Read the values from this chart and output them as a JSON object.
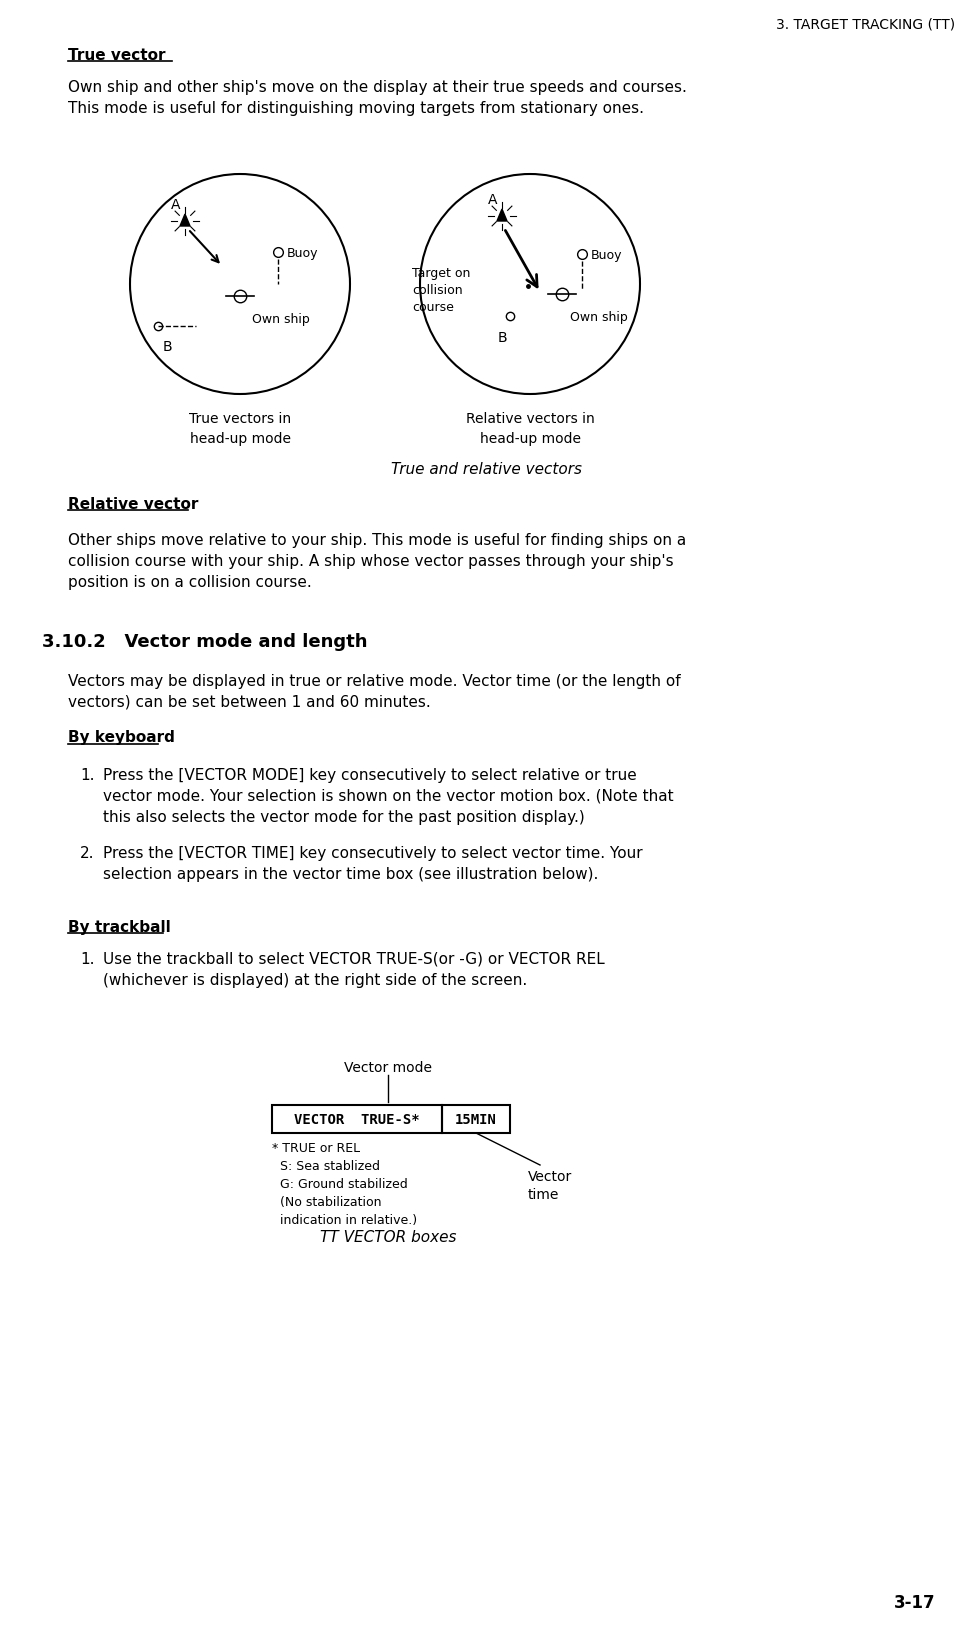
{
  "page_header": "3. TARGET TRACKING (TT)",
  "page_number": "3-17",
  "bg_color": "#ffffff",
  "true_vector_heading": "True vector",
  "true_vector_body": "Own ship and other ship's move on the display at their true speeds and courses.\nThis mode is useful for distinguishing moving targets from stationary ones.",
  "caption_true": "True vectors in\nhead-up mode",
  "caption_relative": "Relative vectors in\nhead-up mode",
  "fig_caption": "True and relative vectors",
  "relative_vector_heading": "Relative vector",
  "relative_vector_body": "Other ships move relative to your ship. This mode is useful for finding ships on a\ncollision course with your ship. A ship whose vector passes through your ship's\nposition is on a collision course.",
  "section_heading": "3.10.2   Vector mode and length",
  "section_body": "Vectors may be displayed in true or relative mode. Vector time (or the length of\nvectors) can be set between 1 and 60 minutes.",
  "keyboard_heading": "By keyboard",
  "keyboard_items": [
    "Press the [VECTOR MODE] key consecutively to select relative or true\nvector mode. Your selection is shown on the vector motion box. (Note that\nthis also selects the vector mode for the past position display.)",
    "Press the [VECTOR TIME] key consecutively to select vector time. Your\nselection appears in the vector time box (see illustration below)."
  ],
  "trackball_heading": "By trackball",
  "trackball_items": [
    "Use the trackball to select VECTOR TRUE-S(or -G) or VECTOR REL\n(whichever is displayed) at the right side of the screen."
  ],
  "box_label1": "VECTOR  TRUE-S*",
  "box_label2": "15MIN",
  "box_annotation1": "Vector mode",
  "box_annotation2": "Vector\ntime",
  "box_note": "* TRUE or REL\n  S: Sea stablized\n  G: Ground stabilized\n  (No stabilization\n  indication in relative.)",
  "diagram_caption": "TT VECTOR boxes"
}
